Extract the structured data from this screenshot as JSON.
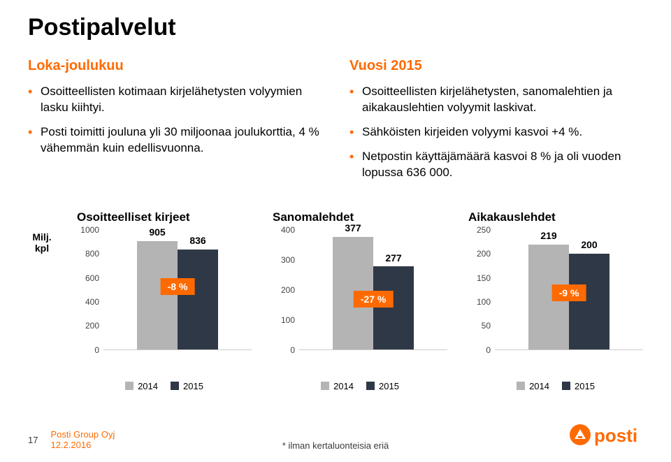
{
  "title": "Postipalvelut",
  "columns": {
    "left": {
      "heading": "Loka-joulukuu",
      "bullets": [
        "Osoitteellisten kotimaan kirjelähetysten volyymien lasku kiihtyi.",
        "Posti toimitti jouluna yli 30 miljoonaa joulukorttia, 4 % vähemmän kuin edellisvuonna."
      ]
    },
    "right": {
      "heading": "Vuosi 2015",
      "bullets": [
        "Osoitteellisten kirjelähetysten, sanomalehtien ja aikakauslehtien volyymit laskivat.",
        "Sähköisten kirjeiden volyymi kasvoi +4 %.",
        "Netpostin käyttäjämäärä kasvoi 8 % ja oli vuoden lopussa 636 000."
      ]
    }
  },
  "y_axis_label": "Milj.\nkpl",
  "colors": {
    "series_2014": "#b4b4b4",
    "series_2015": "#2f3846",
    "accent": "#ff6a00",
    "bg": "#ffffff",
    "tick_text": "#444444"
  },
  "charts": [
    {
      "title": "Osoitteelliset kirjeet",
      "ymax": 1000,
      "ystep": 200,
      "bars": [
        {
          "year": "2014",
          "value": 905
        },
        {
          "year": "2015",
          "value": 836
        }
      ],
      "pct_label": "-8 %",
      "pct_pos_from_bottom": 0.45
    },
    {
      "title": "Sanomalehdet",
      "ymax": 400,
      "ystep": 100,
      "bars": [
        {
          "year": "2014",
          "value": 377
        },
        {
          "year": "2015",
          "value": 277
        }
      ],
      "pct_label": "-27 %",
      "pct_pos_from_bottom": 0.35
    },
    {
      "title": "Aikakauslehdet",
      "ymax": 250,
      "ystep": 50,
      "bars": [
        {
          "year": "2014",
          "value": 219
        },
        {
          "year": "2015",
          "value": 200
        }
      ],
      "pct_label": "-9 %",
      "pct_pos_from_bottom": 0.4
    }
  ],
  "legend_years": [
    "2014",
    "2015"
  ],
  "footer": {
    "page": "17",
    "company": "Posti Group Oyj",
    "date": "12.2.2016",
    "footnote": "* ilman kertaluonteisia eriä",
    "logo_text": "posti"
  }
}
